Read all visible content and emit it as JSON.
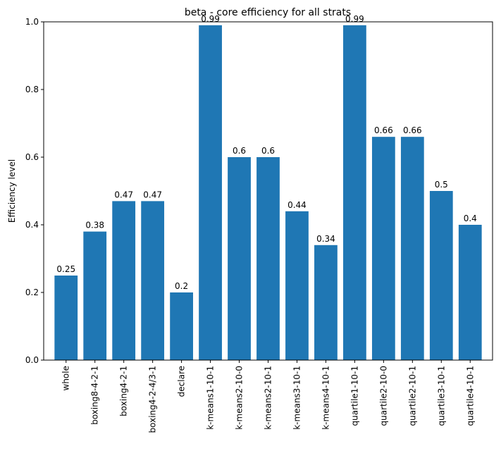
{
  "chart_data": {
    "type": "bar",
    "title": "beta - core efficiency for all strats",
    "xlabel": "",
    "ylabel": "Efficiency level",
    "categories": [
      "whole",
      "boxing8-4-2-1",
      "boxing4-2-1",
      "boxing4-2-4/3-1",
      "declare",
      "k-means1-10-1",
      "k-means2-10-0",
      "k-means2-10-1",
      "k-means3-10-1",
      "k-means4-10-1",
      "quartile1-10-1",
      "quartile2-10-0",
      "quartile2-10-1",
      "quartile3-10-1",
      "quartile4-10-1"
    ],
    "values": [
      0.25,
      0.38,
      0.47,
      0.47,
      0.2,
      0.99,
      0.6,
      0.6,
      0.44,
      0.34,
      0.99,
      0.66,
      0.66,
      0.5,
      0.4
    ],
    "data_labels": [
      "0.25",
      "0.38",
      "0.47",
      "0.47",
      "0.2",
      "0.99",
      "0.6",
      "0.6",
      "0.44",
      "0.34",
      "0.99",
      "0.66",
      "0.66",
      "0.5",
      "0.4"
    ],
    "ylim": [
      0,
      1
    ],
    "yticks": [
      0.0,
      0.2,
      0.4,
      0.6,
      0.8,
      1.0
    ],
    "ytick_labels": [
      "0.0",
      "0.2",
      "0.4",
      "0.6",
      "0.8",
      "1.0"
    ],
    "grid": false,
    "legend": "none",
    "bar_color": "#1f77b4"
  }
}
